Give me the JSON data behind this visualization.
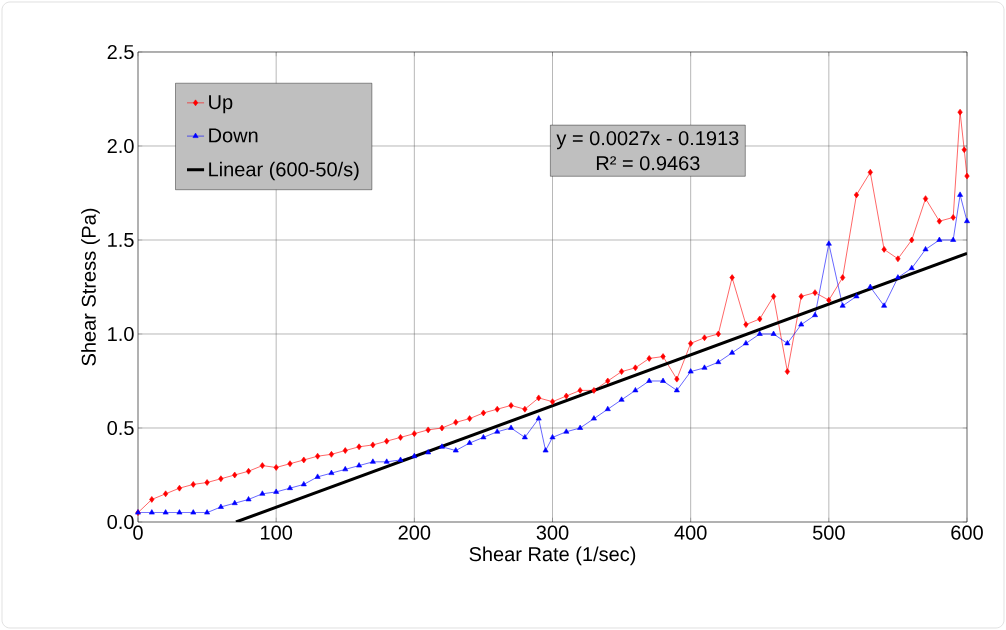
{
  "chart_data": {
    "type": "line",
    "xlabel": "Shear Rate (1/sec)",
    "ylabel": "Shear Stress (Pa)",
    "xlim": [
      0,
      600
    ],
    "ylim": [
      0,
      2.5
    ],
    "xticks": [
      0,
      100,
      200,
      300,
      400,
      500,
      600
    ],
    "yticks": [
      {
        "value": 0,
        "label": "0.0"
      },
      {
        "value": 0.5,
        "label": "0.5"
      },
      {
        "value": 1,
        "label": "1.0"
      },
      {
        "value": 1.5,
        "label": "1.5"
      },
      {
        "value": 2,
        "label": "2.0"
      },
      {
        "value": 2.5,
        "label": "2.5"
      }
    ],
    "grid": true,
    "legend": "top left",
    "annotations": [
      "y = 0.0027x - 0.1913",
      "R² = 0.9463"
    ],
    "series": [
      {
        "name": "Up",
        "color": "#ff0000",
        "marker": "diamond",
        "x": [
          0,
          10,
          20,
          30,
          40,
          50,
          60,
          70,
          80,
          90,
          100,
          110,
          120,
          130,
          140,
          150,
          160,
          170,
          180,
          190,
          200,
          210,
          220,
          230,
          240,
          250,
          260,
          270,
          280,
          290,
          300,
          310,
          320,
          330,
          340,
          350,
          360,
          370,
          380,
          390,
          400,
          410,
          420,
          430,
          440,
          450,
          460,
          470,
          480,
          490,
          500,
          510,
          520,
          530,
          540,
          550,
          560,
          570,
          580,
          590,
          595,
          598,
          600
        ],
        "values": [
          0.05,
          0.12,
          0.15,
          0.18,
          0.2,
          0.21,
          0.23,
          0.25,
          0.27,
          0.3,
          0.29,
          0.31,
          0.33,
          0.35,
          0.36,
          0.38,
          0.4,
          0.41,
          0.43,
          0.45,
          0.47,
          0.49,
          0.5,
          0.53,
          0.55,
          0.58,
          0.6,
          0.62,
          0.6,
          0.66,
          0.64,
          0.67,
          0.7,
          0.7,
          0.75,
          0.8,
          0.82,
          0.87,
          0.88,
          0.76,
          0.95,
          0.98,
          1.0,
          1.3,
          1.05,
          1.08,
          1.2,
          0.8,
          1.2,
          1.22,
          1.18,
          1.3,
          1.74,
          1.86,
          1.45,
          1.4,
          1.5,
          1.72,
          1.6,
          1.62,
          2.18,
          1.98,
          1.84
        ]
      },
      {
        "name": "Down",
        "color": "#0000ff",
        "marker": "triangle",
        "x": [
          0,
          10,
          20,
          30,
          40,
          50,
          60,
          70,
          80,
          90,
          100,
          110,
          120,
          130,
          140,
          150,
          160,
          170,
          180,
          190,
          200,
          210,
          220,
          230,
          240,
          250,
          260,
          270,
          280,
          290,
          295,
          300,
          310,
          320,
          330,
          340,
          350,
          360,
          370,
          380,
          390,
          400,
          410,
          420,
          430,
          440,
          450,
          460,
          470,
          480,
          490,
          500,
          510,
          520,
          530,
          540,
          550,
          560,
          570,
          580,
          590,
          595,
          600
        ],
        "values": [
          0.05,
          0.05,
          0.05,
          0.05,
          0.05,
          0.05,
          0.08,
          0.1,
          0.12,
          0.15,
          0.16,
          0.18,
          0.2,
          0.24,
          0.26,
          0.28,
          0.3,
          0.32,
          0.32,
          0.33,
          0.35,
          0.37,
          0.4,
          0.38,
          0.42,
          0.45,
          0.48,
          0.5,
          0.45,
          0.55,
          0.38,
          0.45,
          0.48,
          0.5,
          0.55,
          0.6,
          0.65,
          0.7,
          0.75,
          0.75,
          0.7,
          0.8,
          0.82,
          0.85,
          0.9,
          0.95,
          1.0,
          1.0,
          0.95,
          1.05,
          1.1,
          1.48,
          1.15,
          1.2,
          1.25,
          1.15,
          1.3,
          1.35,
          1.45,
          1.5,
          1.5,
          1.74,
          1.6
        ]
      },
      {
        "name": "Linear (600-50/s)",
        "color": "#000000",
        "x": [
          70.9,
          600
        ],
        "values": [
          0,
          1.429
        ]
      }
    ]
  }
}
